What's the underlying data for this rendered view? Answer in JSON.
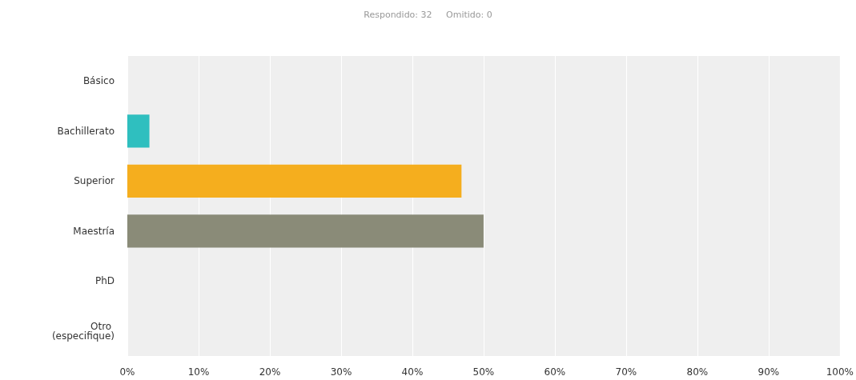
{
  "chart_data": {
    "type": "bar",
    "orientation": "horizontal",
    "title": "Respondido: 32     Omitido: 0",
    "categories": [
      "Básico",
      "Bachillerato",
      "Superior",
      "Maestría",
      "PhD",
      "Otro (especifique)"
    ],
    "values": [
      0,
      3.1,
      46.9,
      50,
      0,
      0
    ],
    "colors": [
      "#2fbfbf",
      "#2fbfbf",
      "#f5ae1e",
      "#8a8b78",
      "#8a8b78",
      "#8a8b78"
    ],
    "xlim": [
      0,
      100
    ],
    "xticks": [
      {
        "value": 0,
        "label": "0%"
      },
      {
        "value": 10,
        "label": "10%"
      },
      {
        "value": 20,
        "label": "20%"
      },
      {
        "value": 30,
        "label": "30%"
      },
      {
        "value": 40,
        "label": "40%"
      },
      {
        "value": 50,
        "label": "50%"
      },
      {
        "value": 60,
        "label": "60%"
      },
      {
        "value": 70,
        "label": "70%"
      },
      {
        "value": 80,
        "label": "80%"
      },
      {
        "value": 90,
        "label": "90%"
      },
      {
        "value": 100,
        "label": "100%"
      }
    ],
    "grid": "x"
  }
}
